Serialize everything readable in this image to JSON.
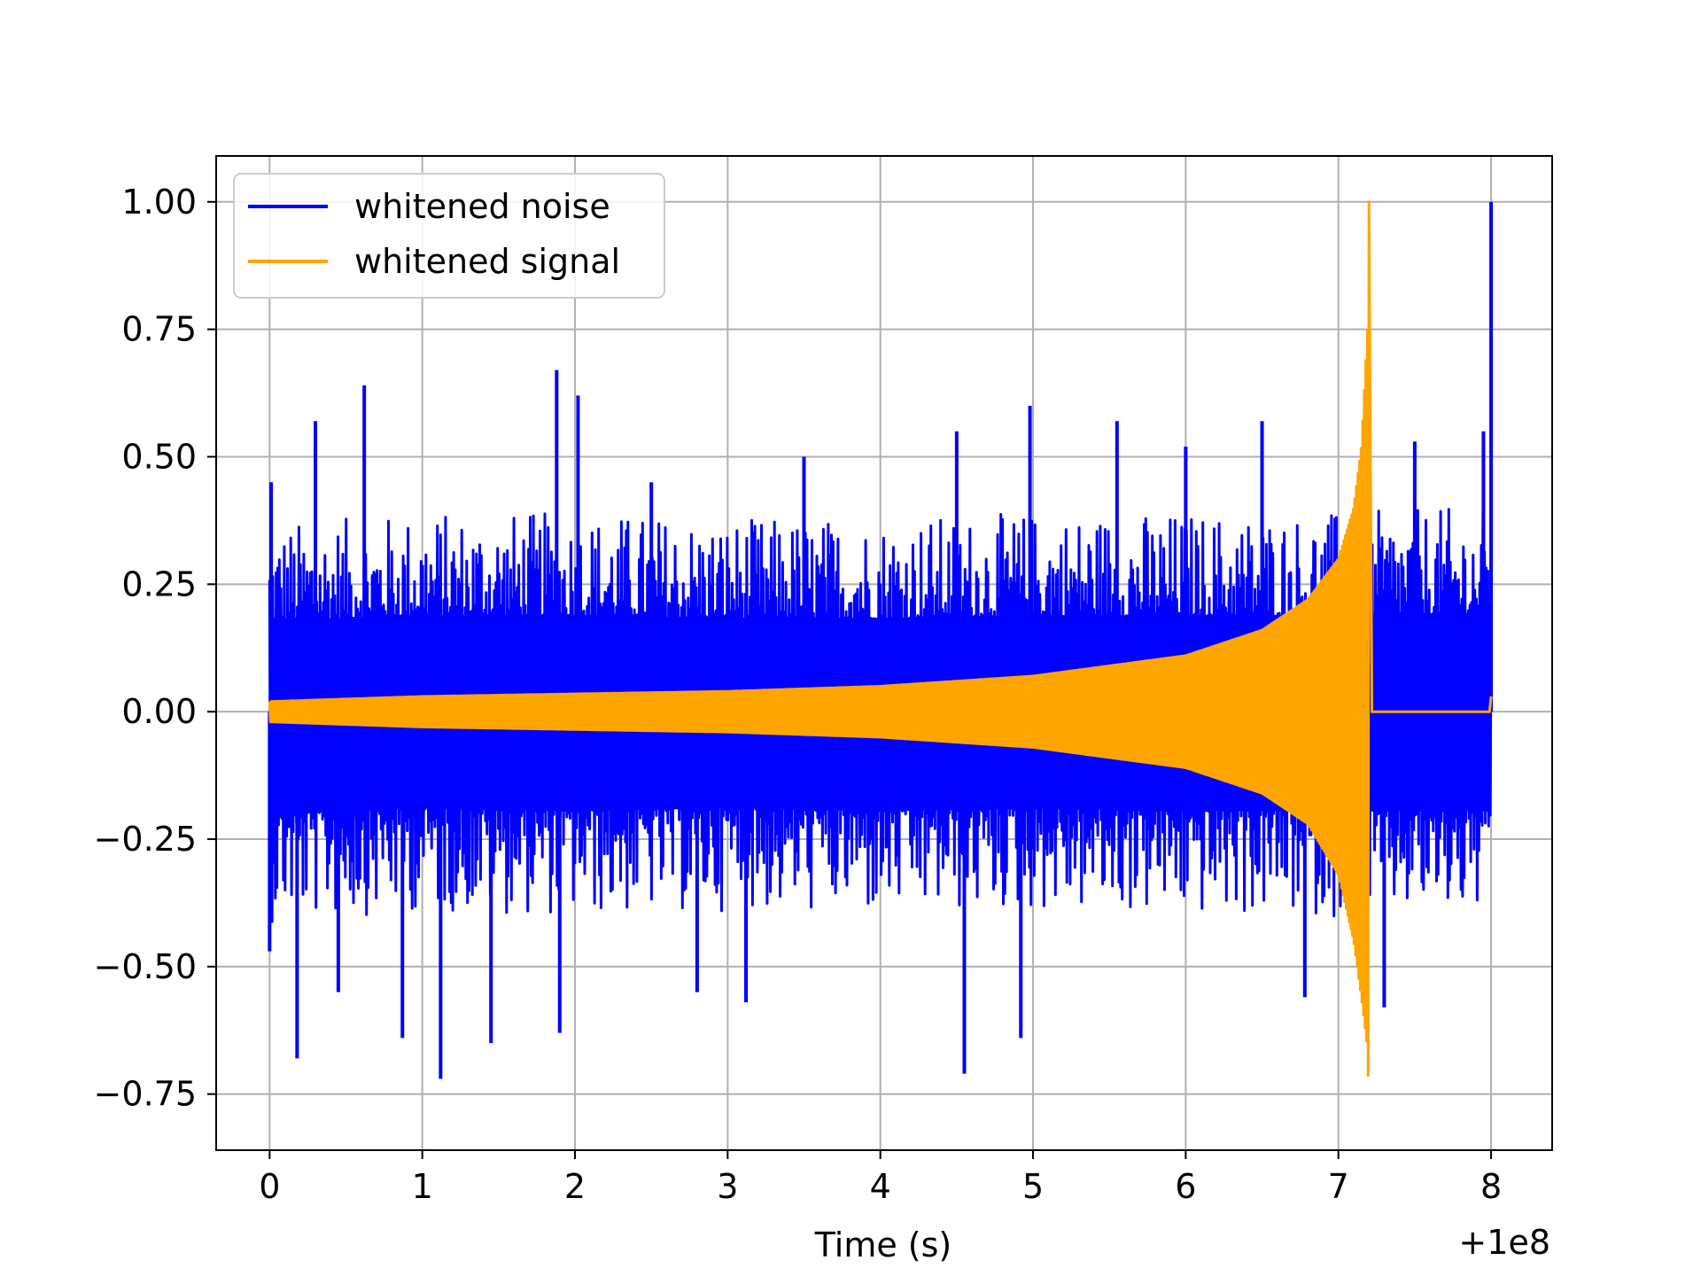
{
  "chart_data": {
    "type": "line",
    "title": "",
    "xlabel": "Time (s)",
    "ylabel": "",
    "x_offset_label": "+1e8",
    "xlim": [
      -0.35,
      8.4
    ],
    "ylim": [
      -0.86,
      1.09
    ],
    "xticks": [
      0,
      1,
      2,
      3,
      4,
      5,
      6,
      7,
      8
    ],
    "xtick_labels": [
      "0",
      "1",
      "2",
      "3",
      "4",
      "5",
      "6",
      "7",
      "8"
    ],
    "yticks": [
      1.0,
      0.75,
      0.5,
      0.25,
      0.0,
      -0.25,
      -0.5,
      -0.75
    ],
    "ytick_labels": [
      "1.00",
      "0.75",
      "0.50",
      "0.25",
      "0.00",
      "−0.25",
      "−0.50",
      "−0.75"
    ],
    "grid": true,
    "legend_position": "top-left",
    "legend": [
      "whitened noise",
      "whitened signal"
    ],
    "colors": {
      "noise": "#0000ff",
      "signal": "#ffa500",
      "grid": "#b0b0b0",
      "axes": "#000000"
    },
    "series": [
      {
        "name": "whitened noise",
        "color": "#0000ff",
        "x_range": [
          0,
          8
        ],
        "envelope_upper": [
          [
            0,
            0.32
          ],
          [
            1,
            0.34
          ],
          [
            2,
            0.34
          ],
          [
            3,
            0.33
          ],
          [
            4,
            0.33
          ],
          [
            5,
            0.34
          ],
          [
            6,
            0.34
          ],
          [
            7,
            0.34
          ],
          [
            8,
            0.35
          ]
        ],
        "envelope_lower": [
          [
            0,
            -0.36
          ],
          [
            1,
            -0.34
          ],
          [
            2,
            -0.35
          ],
          [
            3,
            -0.34
          ],
          [
            4,
            -0.35
          ],
          [
            5,
            -0.34
          ],
          [
            6,
            -0.35
          ],
          [
            7,
            -0.35
          ],
          [
            8,
            -0.35
          ]
        ],
        "peaks": [
          [
            0.01,
            0.45
          ],
          [
            0.0,
            -0.47
          ],
          [
            0.18,
            -0.68
          ],
          [
            0.3,
            0.57
          ],
          [
            0.45,
            -0.55
          ],
          [
            0.62,
            0.64
          ],
          [
            0.87,
            -0.64
          ],
          [
            1.12,
            -0.72
          ],
          [
            1.45,
            -0.65
          ],
          [
            1.88,
            0.67
          ],
          [
            1.9,
            -0.63
          ],
          [
            2.02,
            0.62
          ],
          [
            2.5,
            0.45
          ],
          [
            2.8,
            -0.55
          ],
          [
            3.12,
            -0.57
          ],
          [
            3.5,
            0.5
          ],
          [
            4.5,
            0.55
          ],
          [
            4.55,
            -0.71
          ],
          [
            4.92,
            -0.64
          ],
          [
            4.98,
            0.6
          ],
          [
            5.55,
            0.57
          ],
          [
            6.0,
            0.52
          ],
          [
            6.5,
            0.57
          ],
          [
            6.78,
            -0.56
          ],
          [
            7.3,
            -0.58
          ],
          [
            7.5,
            0.53
          ],
          [
            7.95,
            0.55
          ],
          [
            8.0,
            1.0
          ]
        ]
      },
      {
        "name": "whitened signal",
        "color": "#ffa500",
        "x_range": [
          0,
          7.2
        ],
        "envelope_upper": [
          [
            0,
            0.02
          ],
          [
            1,
            0.03
          ],
          [
            2,
            0.035
          ],
          [
            3,
            0.04
          ],
          [
            4,
            0.05
          ],
          [
            5,
            0.07
          ],
          [
            6,
            0.11
          ],
          [
            6.5,
            0.16
          ],
          [
            6.8,
            0.22
          ],
          [
            7.0,
            0.3
          ],
          [
            7.1,
            0.4
          ],
          [
            7.15,
            0.52
          ],
          [
            7.19,
            0.75
          ],
          [
            7.2,
            1.0
          ]
        ],
        "envelope_lower": [
          [
            0,
            -0.02
          ],
          [
            1,
            -0.03
          ],
          [
            2,
            -0.035
          ],
          [
            3,
            -0.04
          ],
          [
            4,
            -0.05
          ],
          [
            5,
            -0.07
          ],
          [
            6,
            -0.11
          ],
          [
            6.5,
            -0.16
          ],
          [
            6.8,
            -0.22
          ],
          [
            7.0,
            -0.32
          ],
          [
            7.1,
            -0.45
          ],
          [
            7.15,
            -0.56
          ],
          [
            7.19,
            -0.66
          ],
          [
            7.2,
            -0.77
          ]
        ],
        "after_merger_value": 0.0,
        "tail_value": 0.03
      }
    ]
  }
}
